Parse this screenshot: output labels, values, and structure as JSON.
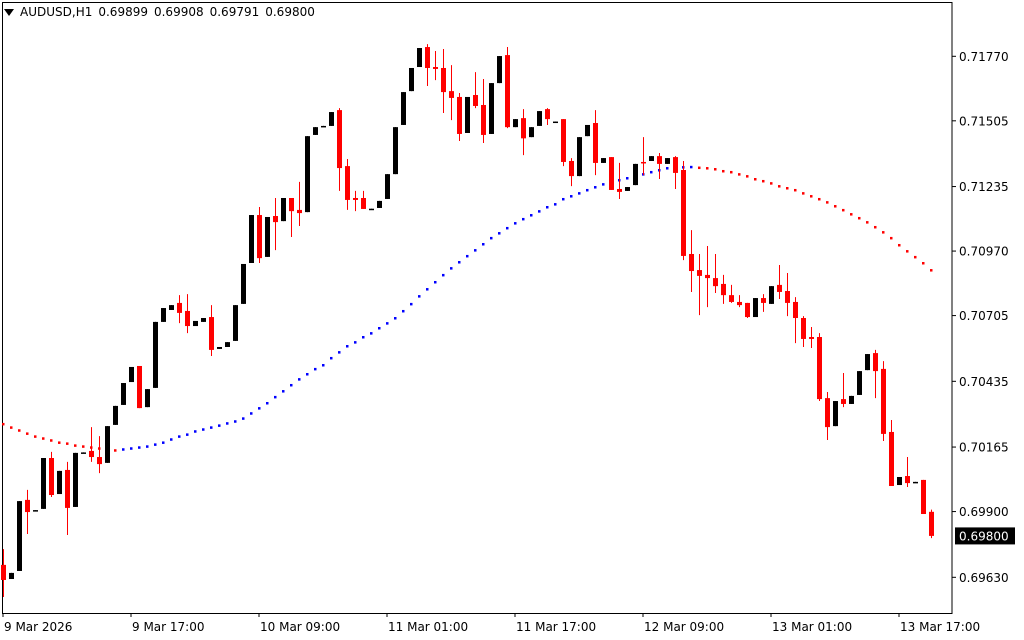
{
  "header": {
    "symbol": "AUDUSD,H1",
    "open": "0.69899",
    "high": "0.69908",
    "low": "0.69791",
    "close": "0.69800"
  },
  "current_price_label": "0.69800",
  "colors": {
    "bull": "#000000",
    "bear": "#ff0000",
    "ma_rising": "#0000ff",
    "ma_falling": "#ff0000",
    "price_label_bg": "#000000"
  },
  "chart_data": {
    "type": "candlestick",
    "symbol": "AUDUSD",
    "timeframe": "H1",
    "ylim": [
      0.695,
      0.7185
    ],
    "yticks": [
      "0.71770",
      "0.71505",
      "0.71235",
      "0.70970",
      "0.70705",
      "0.70435",
      "0.70165",
      "0.69900",
      "0.69630"
    ],
    "xticks": [
      "9 Mar 2026",
      "9 Mar 17:00",
      "10 Mar 09:00",
      "11 Mar 01:00",
      "11 Mar 17:00",
      "12 Mar 09:00",
      "13 Mar 01:00",
      "13 Mar 17:00"
    ],
    "ohlc": [
      [
        0.69681,
        0.69746,
        0.69549,
        0.69619
      ],
      [
        0.69623,
        0.69648,
        0.69623,
        0.69648
      ],
      [
        0.69656,
        0.69943,
        0.69656,
        0.69943
      ],
      [
        0.69948,
        0.69989,
        0.69808,
        0.69898
      ],
      [
        0.69905,
        0.69906,
        0.69905,
        0.69906
      ],
      [
        0.69911,
        0.7012,
        0.69911,
        0.7012
      ],
      [
        0.7012,
        0.70145,
        0.6996,
        0.69968
      ],
      [
        0.69972,
        0.70067,
        0.69972,
        0.70067
      ],
      [
        0.70071,
        0.70104,
        0.69804,
        0.69915
      ],
      [
        0.69919,
        0.70141,
        0.69919,
        0.70141
      ],
      [
        0.70141,
        0.70143,
        0.70141,
        0.70143
      ],
      [
        0.70149,
        0.70247,
        0.70104,
        0.70124
      ],
      [
        0.70124,
        0.7021,
        0.70058,
        0.70095
      ],
      [
        0.701,
        0.70251,
        0.701,
        0.70251
      ],
      [
        0.70256,
        0.70334,
        0.70256,
        0.70334
      ],
      [
        0.70338,
        0.70428,
        0.70338,
        0.70428
      ],
      [
        0.70432,
        0.70494,
        0.70432,
        0.70494
      ],
      [
        0.70498,
        0.70498,
        0.70325,
        0.70325
      ],
      [
        0.70329,
        0.70403,
        0.70329,
        0.70403
      ],
      [
        0.70408,
        0.70679,
        0.70408,
        0.70679
      ],
      [
        0.70679,
        0.70736,
        0.70679,
        0.70736
      ],
      [
        0.70728,
        0.70748,
        0.70728,
        0.70748
      ],
      [
        0.70757,
        0.70789,
        0.70674,
        0.70716
      ],
      [
        0.70724,
        0.70793,
        0.70633,
        0.70662
      ],
      [
        0.70662,
        0.70683,
        0.70662,
        0.70683
      ],
      [
        0.70679,
        0.70695,
        0.70679,
        0.70695
      ],
      [
        0.70699,
        0.70748,
        0.70539,
        0.70564
      ],
      [
        0.70568,
        0.70576,
        0.70568,
        0.70576
      ],
      [
        0.70576,
        0.70596,
        0.70576,
        0.70596
      ],
      [
        0.70601,
        0.70748,
        0.70601,
        0.70748
      ],
      [
        0.70753,
        0.70917,
        0.70753,
        0.70917
      ],
      [
        0.70921,
        0.71118,
        0.70921,
        0.71118
      ],
      [
        0.71118,
        0.71151,
        0.70921,
        0.70941
      ],
      [
        0.70946,
        0.7111,
        0.70946,
        0.7111
      ],
      [
        0.71114,
        0.71188,
        0.70974,
        0.71089
      ],
      [
        0.71093,
        0.71188,
        0.71093,
        0.71188
      ],
      [
        0.71188,
        0.71188,
        0.71028,
        0.71134
      ],
      [
        0.71139,
        0.71254,
        0.71073,
        0.71126
      ],
      [
        0.7113,
        0.71442,
        0.7113,
        0.71442
      ],
      [
        0.71447,
        0.71479,
        0.71447,
        0.71479
      ],
      [
        0.7148,
        0.71484,
        0.7148,
        0.71484
      ],
      [
        0.71484,
        0.71541,
        0.71484,
        0.71541
      ],
      [
        0.71549,
        0.71557,
        0.71217,
        0.71311
      ],
      [
        0.71319,
        0.71348,
        0.71139,
        0.7118
      ],
      [
        0.71188,
        0.71217,
        0.71134,
        0.7118
      ],
      [
        0.71188,
        0.71217,
        0.71143,
        0.71143
      ],
      [
        0.71143,
        0.71144,
        0.71143,
        0.71144
      ],
      [
        0.71147,
        0.71176,
        0.71147,
        0.71176
      ],
      [
        0.71184,
        0.71286,
        0.71184,
        0.71286
      ],
      [
        0.71286,
        0.71479,
        0.71286,
        0.71479
      ],
      [
        0.71488,
        0.71623,
        0.71488,
        0.71623
      ],
      [
        0.71627,
        0.71722,
        0.71627,
        0.71722
      ],
      [
        0.71726,
        0.71804,
        0.71726,
        0.71804
      ],
      [
        0.71808,
        0.7182,
        0.71648,
        0.71722
      ],
      [
        0.71726,
        0.71792,
        0.71672,
        0.71718
      ],
      [
        0.71722,
        0.718,
        0.71537,
        0.71623
      ],
      [
        0.71627,
        0.71734,
        0.71508,
        0.71599
      ],
      [
        0.71603,
        0.71619,
        0.71422,
        0.71451
      ],
      [
        0.71455,
        0.71603,
        0.71455,
        0.71603
      ],
      [
        0.71611,
        0.71705,
        0.71557,
        0.71566
      ],
      [
        0.7157,
        0.71677,
        0.71414,
        0.71447
      ],
      [
        0.71451,
        0.7166,
        0.71451,
        0.7166
      ],
      [
        0.7166,
        0.71771,
        0.7166,
        0.71771
      ],
      [
        0.71775,
        0.71808,
        0.71475,
        0.71479
      ],
      [
        0.71479,
        0.71512,
        0.71479,
        0.71512
      ],
      [
        0.71516,
        0.71553,
        0.71364,
        0.71433
      ],
      [
        0.71438,
        0.71479,
        0.71438,
        0.71479
      ],
      [
        0.71484,
        0.71545,
        0.71484,
        0.71545
      ],
      [
        0.71553,
        0.71557,
        0.71488,
        0.71512
      ],
      [
        0.715,
        0.71502,
        0.715,
        0.71502
      ],
      [
        0.71512,
        0.71512,
        0.71319,
        0.71336
      ],
      [
        0.7134,
        0.71352,
        0.71237,
        0.71278
      ],
      [
        0.71278,
        0.71438,
        0.71278,
        0.71438
      ],
      [
        0.71442,
        0.71488,
        0.71442,
        0.71488
      ],
      [
        0.71496,
        0.71549,
        0.71282,
        0.71332
      ],
      [
        0.71332,
        0.71352,
        0.71332,
        0.71352
      ],
      [
        0.71356,
        0.71356,
        0.71221,
        0.71221
      ],
      [
        0.71225,
        0.71332,
        0.71184,
        0.71213
      ],
      [
        0.71217,
        0.71233,
        0.71217,
        0.71233
      ],
      [
        0.71241,
        0.71328,
        0.71241,
        0.71328
      ],
      [
        0.71336,
        0.71438,
        0.71282,
        0.71332
      ],
      [
        0.7134,
        0.7136,
        0.7134,
        0.7136
      ],
      [
        0.7136,
        0.71373,
        0.71266,
        0.71328
      ],
      [
        0.71328,
        0.71352,
        0.71328,
        0.71352
      ],
      [
        0.71356,
        0.7136,
        0.71225,
        0.71291
      ],
      [
        0.71303,
        0.7134,
        0.70933,
        0.7095
      ],
      [
        0.70958,
        0.71056,
        0.70802,
        0.70888
      ],
      [
        0.70892,
        0.70958,
        0.70707,
        0.70868
      ],
      [
        0.70872,
        0.70991,
        0.7074,
        0.70859
      ],
      [
        0.70859,
        0.70958,
        0.70798,
        0.70826
      ],
      [
        0.70835,
        0.70872,
        0.70753,
        0.70789
      ],
      [
        0.70789,
        0.70831,
        0.70757,
        0.70761
      ],
      [
        0.70761,
        0.70789,
        0.7074,
        0.70748
      ],
      [
        0.70757,
        0.70757,
        0.70695,
        0.70699
      ],
      [
        0.70699,
        0.70777,
        0.70699,
        0.70777
      ],
      [
        0.70777,
        0.70793,
        0.7072,
        0.70757
      ],
      [
        0.70753,
        0.70826,
        0.70753,
        0.70826
      ],
      [
        0.70831,
        0.70913,
        0.70773,
        0.70802
      ],
      [
        0.70806,
        0.7088,
        0.70703,
        0.70757
      ],
      [
        0.70761,
        0.70781,
        0.70592,
        0.70695
      ],
      [
        0.70695,
        0.70703,
        0.70576,
        0.70609
      ],
      [
        0.70617,
        0.70658,
        0.70572,
        0.70609
      ],
      [
        0.70617,
        0.70633,
        0.70354,
        0.70362
      ],
      [
        0.70366,
        0.70391,
        0.70194,
        0.70247
      ],
      [
        0.70251,
        0.70354,
        0.70251,
        0.70354
      ],
      [
        0.70362,
        0.70469,
        0.70329,
        0.70342
      ],
      [
        0.70342,
        0.70375,
        0.70342,
        0.70375
      ],
      [
        0.70379,
        0.70477,
        0.70379,
        0.70477
      ],
      [
        0.70481,
        0.70547,
        0.70481,
        0.70547
      ],
      [
        0.70551,
        0.70564,
        0.70366,
        0.70477
      ],
      [
        0.70486,
        0.70518,
        0.7019,
        0.70219
      ],
      [
        0.70227,
        0.70276,
        0.70005,
        0.70005
      ],
      [
        0.70009,
        0.70042,
        0.70009,
        0.70042
      ],
      [
        0.70046,
        0.70124,
        0.70001,
        0.70017
      ],
      [
        0.7002,
        0.70022,
        0.7002,
        0.70022
      ],
      [
        0.7003,
        0.7003,
        0.6989,
        0.6989
      ],
      [
        0.69899,
        0.69908,
        0.69791,
        0.698
      ]
    ],
    "moving_average": [
      0.7026,
      0.70246,
      0.70234,
      0.70221,
      0.70209,
      0.70201,
      0.70193,
      0.70184,
      0.7018,
      0.70172,
      0.70168,
      0.70164,
      0.7016,
      0.70156,
      0.70152,
      0.70156,
      0.7016,
      0.70164,
      0.70168,
      0.70176,
      0.70184,
      0.70197,
      0.70209,
      0.70217,
      0.7023,
      0.70238,
      0.70246,
      0.70254,
      0.70263,
      0.70271,
      0.70283,
      0.70304,
      0.70325,
      0.70346,
      0.70371,
      0.70395,
      0.7042,
      0.70444,
      0.70465,
      0.70486,
      0.70502,
      0.70531,
      0.70555,
      0.7058,
      0.70596,
      0.70617,
      0.70633,
      0.70654,
      0.70674,
      0.70695,
      0.70724,
      0.70753,
      0.70785,
      0.70814,
      0.70843,
      0.70872,
      0.709,
      0.70925,
      0.7095,
      0.70974,
      0.70999,
      0.71024,
      0.71044,
      0.71065,
      0.71085,
      0.71102,
      0.71118,
      0.71134,
      0.71151,
      0.71163,
      0.71184,
      0.71196,
      0.71208,
      0.71221,
      0.71233,
      0.71245,
      0.71254,
      0.71262,
      0.7127,
      0.71278,
      0.71286,
      0.71295,
      0.71303,
      0.71311,
      0.71314,
      0.71315,
      0.71316,
      0.71313,
      0.71311,
      0.71307,
      0.71299,
      0.71295,
      0.71286,
      0.71278,
      0.71266,
      0.71258,
      0.71249,
      0.71237,
      0.71229,
      0.71221,
      0.71208,
      0.71196,
      0.71184,
      0.71171,
      0.71155,
      0.71139,
      0.71122,
      0.71106,
      0.71089,
      0.71069,
      0.71048,
      0.71024,
      0.70995,
      0.7097,
      0.70946,
      0.70921,
      0.70892
    ]
  }
}
